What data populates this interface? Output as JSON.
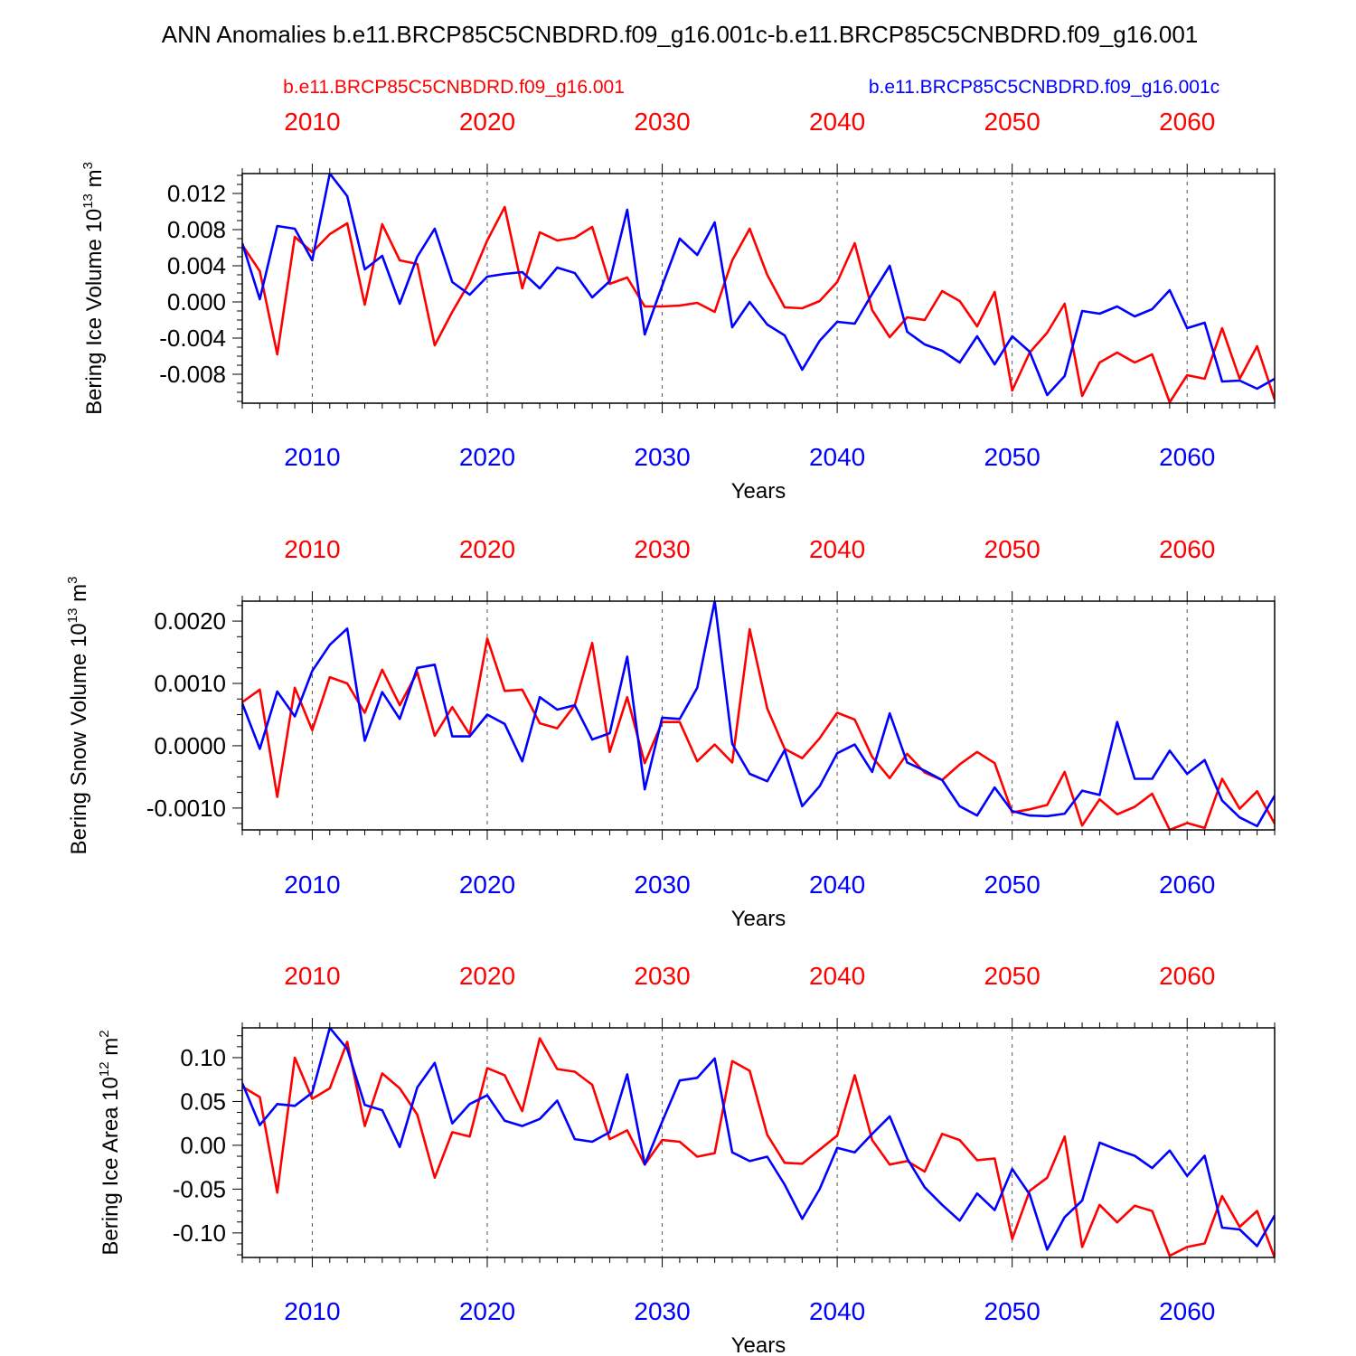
{
  "figure": {
    "title": "ANN Anomalies b.e11.BRCP85C5CNBDRD.f09_g16.001c-b.e11.BRCP85C5CNBDRD.f09_g16.001",
    "legend_left": "b.e11.BRCP85C5CNBDRD.f09_g16.001",
    "legend_right": "b.e11.BRCP85C5CNBDRD.f09_g16.001c"
  },
  "colors": {
    "series_a": "#ff0000",
    "series_b": "#0000ff",
    "axis": "#000000",
    "grid": "#555555"
  },
  "chart_data": [
    {
      "type": "line",
      "ylabel_main": "Bering Ice Volume 10",
      "ylabel_exp": "13",
      "ylabel_unit": " m",
      "ylabel_unit_exp": "3",
      "xlabel": "Years",
      "xlim": [
        2006,
        2065
      ],
      "ylim": [
        -0.0112,
        0.0142
      ],
      "yticks": [
        -0.008,
        -0.004,
        0.0,
        0.004,
        0.008,
        0.012
      ],
      "ytick_labels": [
        "-0.008",
        "-0.004",
        "0.000",
        "0.004",
        "0.008",
        "0.012"
      ],
      "xticks": [
        2010,
        2020,
        2030,
        2040,
        2050,
        2060
      ],
      "xtick_labels": [
        "2010",
        "2020",
        "2030",
        "2040",
        "2050",
        "2060"
      ],
      "series": [
        {
          "name": "b.e11.BRCP85C5CNBDRD.f09_g16.001",
          "color": "#ff0000",
          "values": [
            0.0063,
            0.0034,
            -0.0058,
            0.0072,
            0.0055,
            0.0075,
            0.0087,
            -0.0003,
            0.0086,
            0.0046,
            0.0042,
            -0.0048,
            -0.0011,
            0.0022,
            0.0068,
            0.0105,
            0.0015,
            0.0077,
            0.0068,
            0.0071,
            0.0083,
            0.002,
            0.0027,
            -0.0005,
            -0.0005,
            -0.0004,
            -0.0001,
            -0.0011,
            0.0046,
            0.0081,
            0.003,
            -0.0006,
            -0.0007,
            0.0001,
            0.0022,
            0.0065,
            -0.0009,
            -0.0039,
            -0.0017,
            -0.002,
            0.0012,
            0.0001,
            -0.0027,
            0.0011,
            -0.0098,
            -0.0056,
            -0.0034,
            -0.0002,
            -0.0104,
            -0.0067,
            -0.0056,
            -0.0067,
            -0.0058,
            -0.0111,
            -0.0081,
            -0.0085,
            -0.0029,
            -0.0085,
            -0.0049,
            -0.0108
          ]
        },
        {
          "name": "b.e11.BRCP85C5CNBDRD.f09_g16.001c",
          "color": "#0000ff",
          "values": [
            0.0065,
            0.0003,
            0.0084,
            0.0081,
            0.0046,
            0.0142,
            0.0117,
            0.0036,
            0.0051,
            -0.0002,
            0.005,
            0.0081,
            0.0022,
            0.0008,
            0.0028,
            0.0031,
            0.0033,
            0.0015,
            0.0038,
            0.0032,
            0.0005,
            0.0023,
            0.0102,
            -0.0036,
            0.0018,
            0.007,
            0.0052,
            0.0088,
            -0.0028,
            0.0,
            -0.0025,
            -0.0037,
            -0.0075,
            -0.0043,
            -0.0022,
            -0.0024,
            0.0009,
            0.004,
            -0.0033,
            -0.0047,
            -0.0054,
            -0.0067,
            -0.0038,
            -0.0069,
            -0.0038,
            -0.0055,
            -0.0103,
            -0.0082,
            -0.001,
            -0.0013,
            -0.0005,
            -0.0016,
            -0.0008,
            0.0013,
            -0.0029,
            -0.0023,
            -0.0088,
            -0.0087,
            -0.0096,
            -0.0085
          ]
        }
      ]
    },
    {
      "type": "line",
      "ylabel_main": "Bering Snow Volume 10",
      "ylabel_exp": "13",
      "ylabel_unit": " m",
      "ylabel_unit_exp": "3",
      "xlabel": "Years",
      "xlim": [
        2006,
        2065
      ],
      "ylim": [
        -0.00135,
        0.00232
      ],
      "yticks": [
        -0.001,
        0.0,
        0.001,
        0.002
      ],
      "ytick_labels": [
        "-0.0010",
        "0.0000",
        "0.0010",
        "0.0020"
      ],
      "xticks": [
        2010,
        2020,
        2030,
        2040,
        2050,
        2060
      ],
      "xtick_labels": [
        "2010",
        "2020",
        "2030",
        "2040",
        "2050",
        "2060"
      ],
      "series": [
        {
          "name": "b.e11.BRCP85C5CNBDRD.f09_g16.001",
          "color": "#ff0000",
          "values": [
            0.0007,
            0.0009,
            -0.00082,
            0.00093,
            0.00025,
            0.0011,
            0.001,
            0.00053,
            0.00122,
            0.00065,
            0.00118,
            0.00016,
            0.00062,
            0.00018,
            0.00172,
            0.00088,
            0.0009,
            0.00036,
            0.00028,
            0.00065,
            0.00165,
            -0.0001,
            0.00078,
            -0.00028,
            0.00038,
            0.00038,
            -0.00025,
            2e-05,
            -0.00027,
            0.00187,
            0.0006,
            -5e-05,
            -0.0002,
            0.00012,
            0.00053,
            0.00042,
            -0.00018,
            -0.00052,
            -0.00013,
            -0.00043,
            -0.00055,
            -0.0003,
            -0.0001,
            -0.00028,
            -0.00107,
            -0.00102,
            -0.00095,
            -0.00042,
            -0.00128,
            -0.00086,
            -0.0011,
            -0.00098,
            -0.00077,
            -0.00135,
            -0.00124,
            -0.00132,
            -0.00053,
            -0.00101,
            -0.00073,
            -0.00125
          ]
        },
        {
          "name": "b.e11.BRCP85C5CNBDRD.f09_g16.001c",
          "color": "#0000ff",
          "values": [
            0.00068,
            -5e-05,
            0.00087,
            0.00047,
            0.0012,
            0.00162,
            0.00188,
            8e-05,
            0.00086,
            0.00043,
            0.00125,
            0.0013,
            0.00015,
            0.00015,
            0.0005,
            0.00035,
            -0.00025,
            0.00078,
            0.00058,
            0.00065,
            0.0001,
            0.0002,
            0.00143,
            -0.0007,
            0.00045,
            0.00043,
            0.00093,
            0.00232,
            3e-05,
            -0.00045,
            -0.00057,
            -7e-05,
            -0.00097,
            -0.00065,
            -0.00012,
            2e-05,
            -0.00042,
            0.00052,
            -0.00027,
            -0.0004,
            -0.00055,
            -0.00097,
            -0.00112,
            -0.00067,
            -0.00105,
            -0.00112,
            -0.00113,
            -0.00109,
            -0.00072,
            -0.00079,
            0.00038,
            -0.00053,
            -0.00053,
            -8e-05,
            -0.00045,
            -0.00023,
            -0.00088,
            -0.00115,
            -0.00129,
            -0.0008
          ]
        }
      ]
    },
    {
      "type": "line",
      "ylabel_main": "Bering Ice Area 10",
      "ylabel_exp": "12",
      "ylabel_unit": " m",
      "ylabel_unit_exp": "2",
      "xlabel": "Years",
      "xlim": [
        2006,
        2065
      ],
      "ylim": [
        -0.128,
        0.134
      ],
      "yticks": [
        -0.1,
        -0.05,
        0.0,
        0.05,
        0.1
      ],
      "ytick_labels": [
        "-0.10",
        "-0.05",
        "0.00",
        "0.05",
        "0.10"
      ],
      "xticks": [
        2010,
        2020,
        2030,
        2040,
        2050,
        2060
      ],
      "xtick_labels": [
        "2010",
        "2020",
        "2030",
        "2040",
        "2050",
        "2060"
      ],
      "series": [
        {
          "name": "b.e11.BRCP85C5CNBDRD.f09_g16.001",
          "color": "#ff0000",
          "values": [
            0.067,
            0.055,
            -0.054,
            0.1,
            0.053,
            0.065,
            0.118,
            0.022,
            0.082,
            0.065,
            0.035,
            -0.037,
            0.015,
            0.01,
            0.088,
            0.08,
            0.039,
            0.122,
            0.087,
            0.084,
            0.069,
            0.007,
            0.017,
            -0.022,
            0.006,
            0.004,
            -0.013,
            -0.009,
            0.096,
            0.085,
            0.012,
            -0.02,
            -0.021,
            -0.005,
            0.011,
            0.08,
            0.006,
            -0.022,
            -0.018,
            -0.03,
            0.013,
            0.006,
            -0.017,
            -0.015,
            -0.107,
            -0.052,
            -0.037,
            0.01,
            -0.116,
            -0.068,
            -0.088,
            -0.069,
            -0.075,
            -0.126,
            -0.116,
            -0.112,
            -0.058,
            -0.093,
            -0.075,
            -0.128
          ]
        },
        {
          "name": "b.e11.BRCP85C5CNBDRD.f09_g16.001c",
          "color": "#0000ff",
          "values": [
            0.071,
            0.023,
            0.047,
            0.045,
            0.06,
            0.134,
            0.11,
            0.046,
            0.04,
            -0.002,
            0.066,
            0.094,
            0.025,
            0.047,
            0.057,
            0.028,
            0.022,
            0.03,
            0.051,
            0.007,
            0.004,
            0.015,
            0.081,
            -0.022,
            0.027,
            0.074,
            0.077,
            0.099,
            -0.008,
            -0.018,
            -0.013,
            -0.045,
            -0.084,
            -0.05,
            -0.003,
            -0.008,
            0.013,
            0.033,
            -0.015,
            -0.048,
            -0.068,
            -0.086,
            -0.055,
            -0.074,
            -0.027,
            -0.056,
            -0.119,
            -0.082,
            -0.063,
            0.003,
            -0.005,
            -0.012,
            -0.026,
            -0.006,
            -0.035,
            -0.012,
            -0.094,
            -0.096,
            -0.115,
            -0.08
          ]
        }
      ]
    }
  ]
}
